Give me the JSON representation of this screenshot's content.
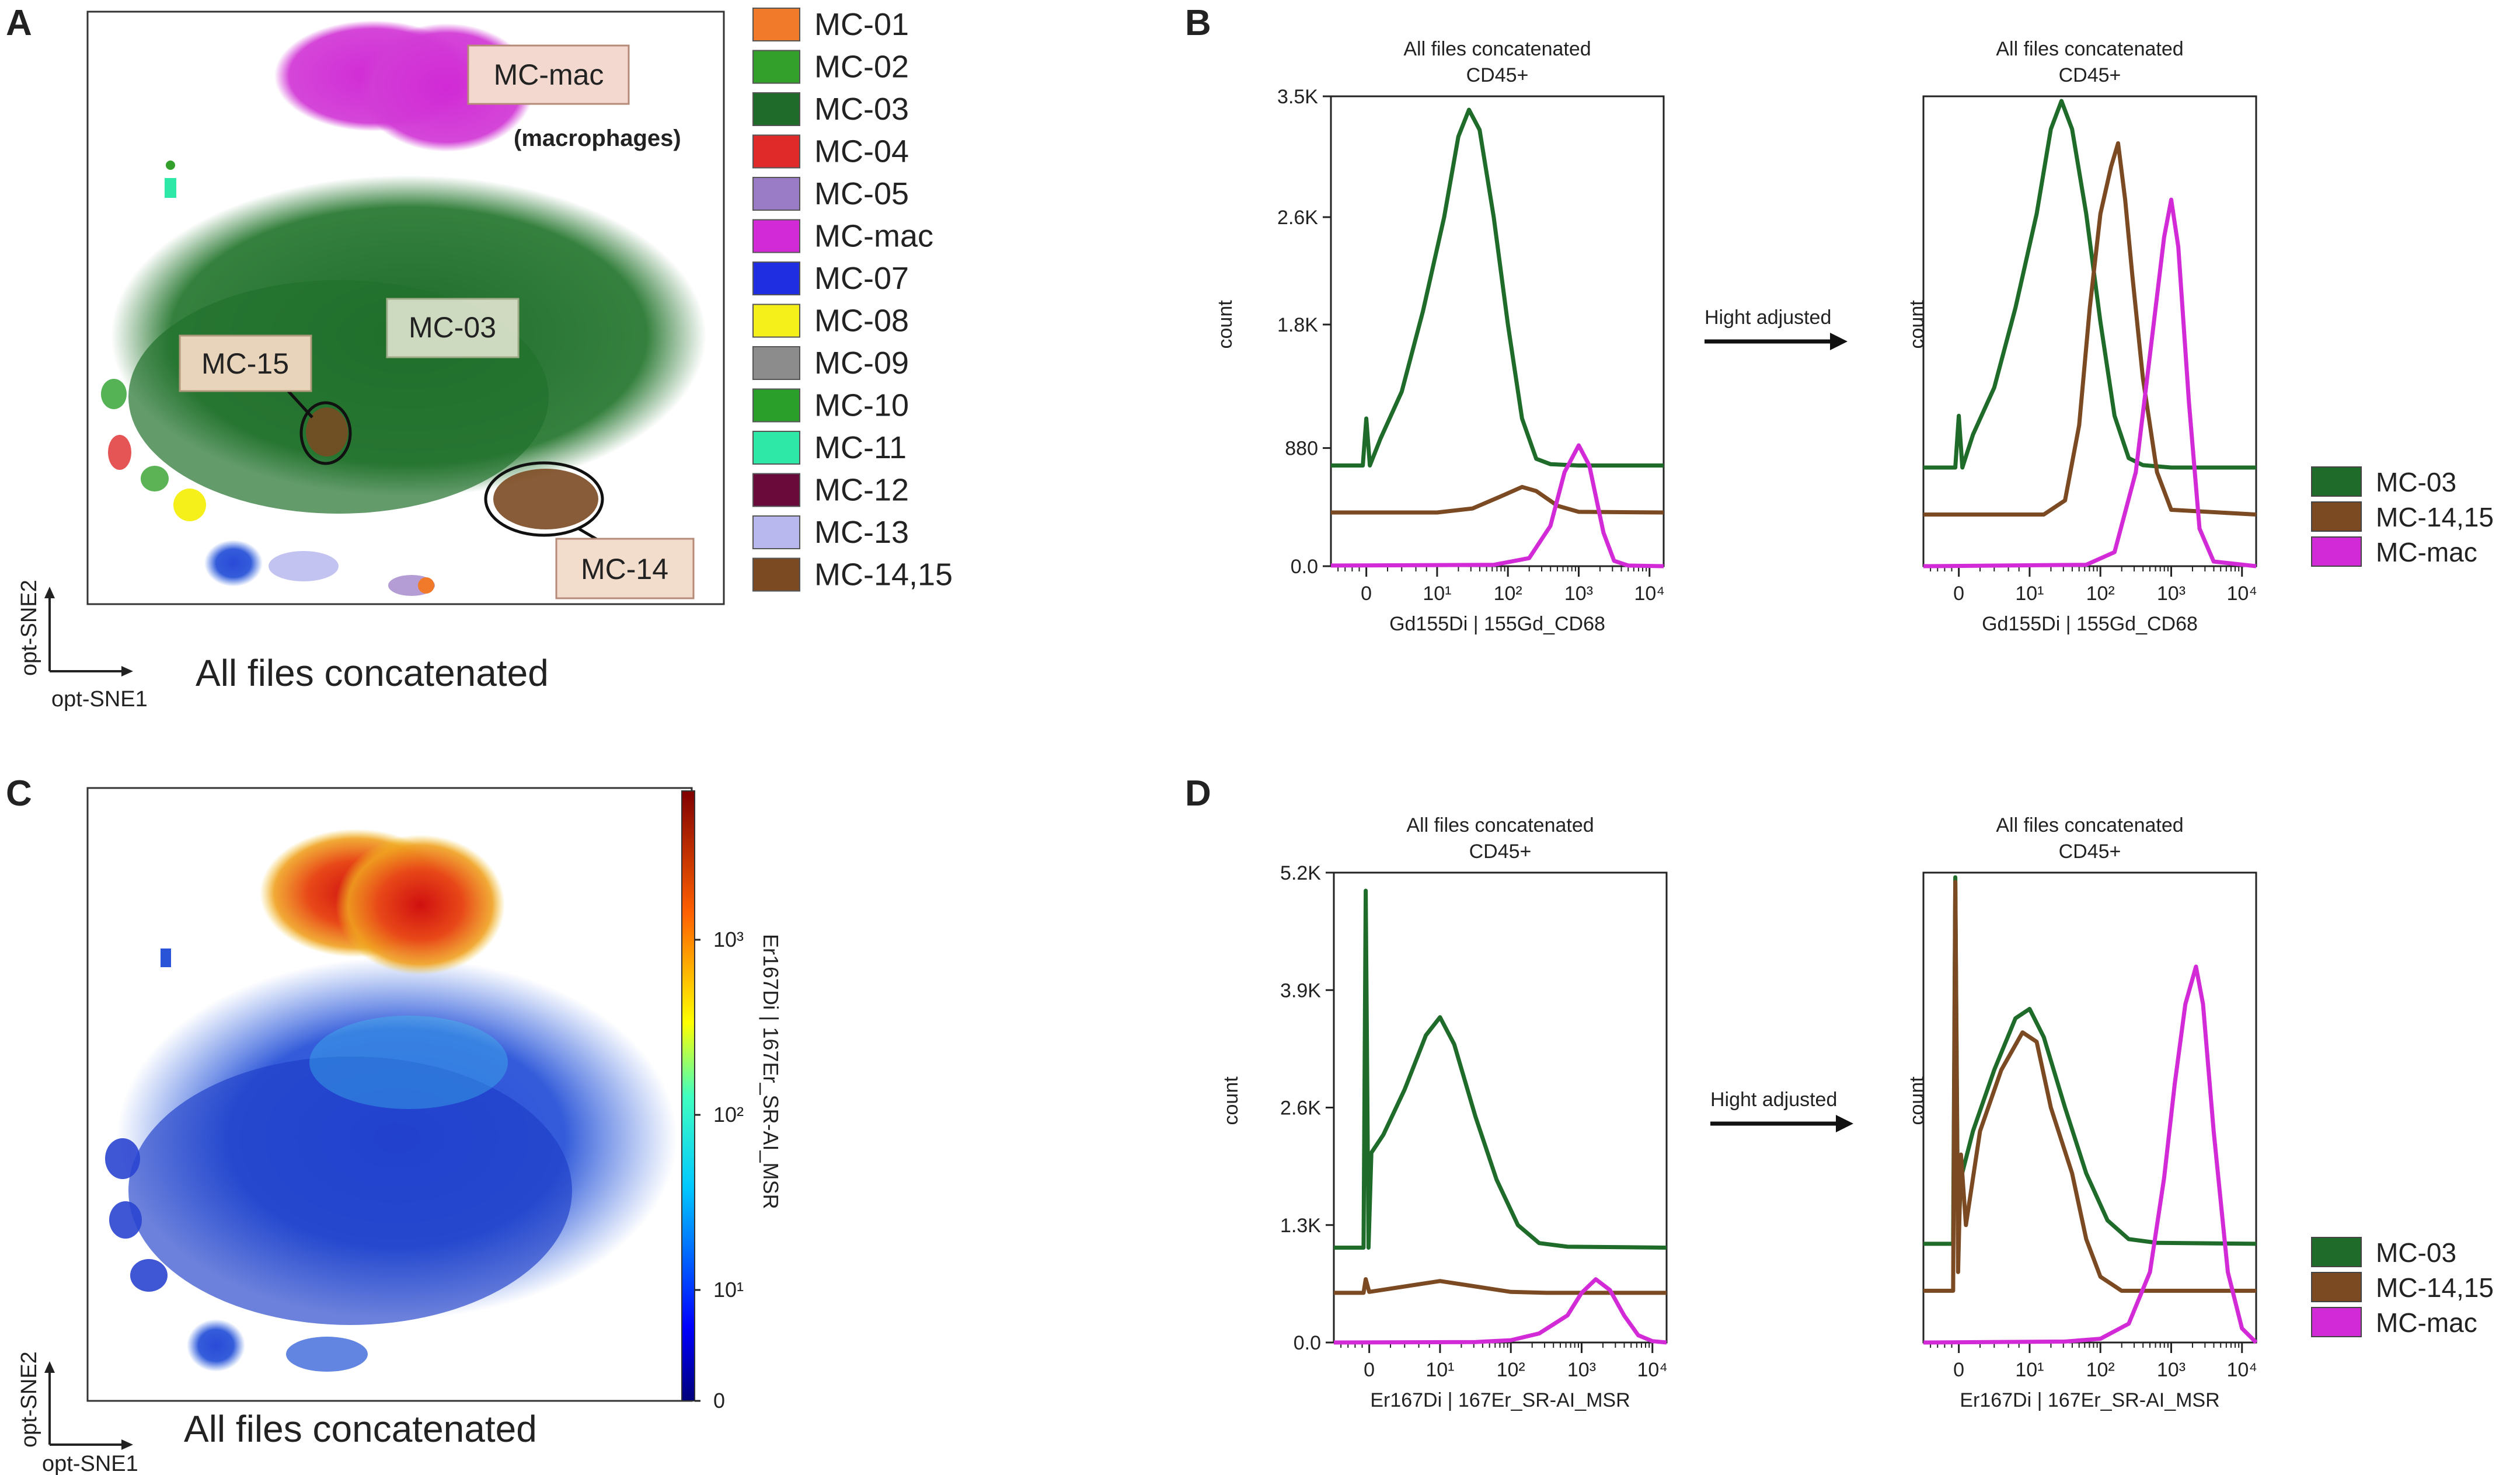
{
  "panel_letters": [
    "A",
    "B",
    "C",
    "D"
  ],
  "colors": {
    "mc03": "#1e6b2a",
    "mc1415": "#7b4a22",
    "mcmac": "#d12ad6"
  },
  "panelA": {
    "footer": "All files concatenated",
    "axis_x": "opt-SNE1",
    "axis_y": "opt-SNE2",
    "callouts": {
      "mac": "MC-mac",
      "mac_note": "(macrophages)",
      "c03": "MC-03",
      "c15": "MC-15",
      "c14": "MC-14"
    },
    "legend": [
      {
        "label": "MC-01",
        "color": "#f07a2a"
      },
      {
        "label": "MC-02",
        "color": "#33a02c"
      },
      {
        "label": "MC-03",
        "color": "#1e6b2a"
      },
      {
        "label": "MC-04",
        "color": "#e02a2a"
      },
      {
        "label": "MC-05",
        "color": "#9a7cc6"
      },
      {
        "label": "MC-mac",
        "color": "#d12ad6"
      },
      {
        "label": "MC-07",
        "color": "#1f2ee0"
      },
      {
        "label": "MC-08",
        "color": "#f5f01a"
      },
      {
        "label": "MC-09",
        "color": "#8c8c8c"
      },
      {
        "label": "MC-10",
        "color": "#2aa02a"
      },
      {
        "label": "MC-11",
        "color": "#2ee8a8"
      },
      {
        "label": "MC-12",
        "color": "#6a0a3a"
      },
      {
        "label": "MC-13",
        "color": "#b8b8ee"
      },
      {
        "label": "MC-14,15",
        "color": "#7b4a22"
      }
    ]
  },
  "panelC": {
    "footer": "All files concatenated",
    "axis_x": "opt-SNE1",
    "axis_y": "opt-SNE2",
    "colorbar_label": "Er167Di | 167Er_SR-AI_MSR",
    "colorbar_ticks": [
      "10³",
      "10²",
      "10¹",
      "0"
    ]
  },
  "transform_label": "Hight adjusted",
  "hist_title_1": "All files concatenated",
  "hist_title_2": "CD45+",
  "hist_ylabel": "count",
  "chart_data": [
    {
      "id": "B-left",
      "type": "line",
      "title": "All files concatenated CD45+",
      "xlabel": "Gd155Di | 155Gd_CD68",
      "ylabel": "count",
      "xscale": "biexponential",
      "xlim": [
        -0.5,
        4.2
      ],
      "ylim": [
        0,
        3500
      ],
      "yticks": [
        "3.5K",
        "2.6K",
        "1.8K",
        "880",
        "0.0"
      ],
      "ytick_values": [
        3500,
        2600,
        1800,
        880,
        0
      ],
      "xticks": [
        "0",
        "10¹",
        "10²",
        "10³",
        "10⁴"
      ],
      "xtick_values": [
        0,
        1,
        2,
        3,
        4
      ],
      "series": [
        {
          "name": "MC-03",
          "color": "#1e6b2a",
          "points": [
            [
              -0.5,
              750
            ],
            [
              -0.2,
              750
            ],
            [
              -0.05,
              750
            ],
            [
              0,
              1100
            ],
            [
              0.05,
              750
            ],
            [
              0.2,
              950
            ],
            [
              0.5,
              1300
            ],
            [
              0.8,
              1900
            ],
            [
              1.1,
              2600
            ],
            [
              1.3,
              3200
            ],
            [
              1.45,
              3400
            ],
            [
              1.6,
              3250
            ],
            [
              1.8,
              2600
            ],
            [
              2.0,
              1800
            ],
            [
              2.2,
              1100
            ],
            [
              2.4,
              800
            ],
            [
              2.6,
              760
            ],
            [
              3.0,
              750
            ],
            [
              4.2,
              750
            ]
          ]
        },
        {
          "name": "MC-14,15",
          "color": "#7b4a22",
          "points": [
            [
              -0.5,
              400
            ],
            [
              1.0,
              400
            ],
            [
              1.5,
              430
            ],
            [
              1.9,
              520
            ],
            [
              2.2,
              590
            ],
            [
              2.4,
              560
            ],
            [
              2.7,
              450
            ],
            [
              3.0,
              405
            ],
            [
              4.2,
              400
            ]
          ]
        },
        {
          "name": "MC-mac",
          "color": "#d12ad6",
          "points": [
            [
              -0.5,
              5
            ],
            [
              1.8,
              10
            ],
            [
              2.3,
              60
            ],
            [
              2.6,
              300
            ],
            [
              2.8,
              700
            ],
            [
              3.0,
              900
            ],
            [
              3.15,
              750
            ],
            [
              3.35,
              250
            ],
            [
              3.5,
              40
            ],
            [
              3.7,
              5
            ],
            [
              4.2,
              0
            ]
          ]
        }
      ]
    },
    {
      "id": "B-right",
      "type": "line",
      "title": "All files concatenated CD45+",
      "xlabel": "Gd155Di | 155Gd_CD68",
      "ylabel": "count",
      "xscale": "biexponential",
      "xlim": [
        -0.5,
        4.2
      ],
      "ylim": [
        0,
        1
      ],
      "xticks": [
        "0",
        "10¹",
        "10²",
        "10³",
        "10⁴"
      ],
      "xtick_values": [
        0,
        1,
        2,
        3,
        4
      ],
      "series": [
        {
          "name": "MC-03",
          "color": "#1e6b2a",
          "points": [
            [
              -0.5,
              0.21
            ],
            [
              -0.05,
              0.21
            ],
            [
              0,
              0.32
            ],
            [
              0.05,
              0.21
            ],
            [
              0.2,
              0.28
            ],
            [
              0.5,
              0.38
            ],
            [
              0.8,
              0.55
            ],
            [
              1.1,
              0.75
            ],
            [
              1.3,
              0.93
            ],
            [
              1.45,
              0.99
            ],
            [
              1.6,
              0.93
            ],
            [
              1.8,
              0.75
            ],
            [
              2.0,
              0.52
            ],
            [
              2.2,
              0.32
            ],
            [
              2.4,
              0.23
            ],
            [
              2.6,
              0.215
            ],
            [
              3.0,
              0.21
            ],
            [
              4.2,
              0.21
            ]
          ]
        },
        {
          "name": "MC-14,15",
          "color": "#7b4a22",
          "points": [
            [
              -0.5,
              0.11
            ],
            [
              1.2,
              0.11
            ],
            [
              1.5,
              0.14
            ],
            [
              1.7,
              0.3
            ],
            [
              1.85,
              0.55
            ],
            [
              2.0,
              0.75
            ],
            [
              2.15,
              0.85
            ],
            [
              2.25,
              0.9
            ],
            [
              2.35,
              0.78
            ],
            [
              2.45,
              0.62
            ],
            [
              2.6,
              0.4
            ],
            [
              2.8,
              0.2
            ],
            [
              3.0,
              0.12
            ],
            [
              4.2,
              0.11
            ]
          ]
        },
        {
          "name": "MC-mac",
          "color": "#d12ad6",
          "points": [
            [
              -0.5,
              0.0
            ],
            [
              1.8,
              0.003
            ],
            [
              2.2,
              0.03
            ],
            [
              2.5,
              0.2
            ],
            [
              2.7,
              0.45
            ],
            [
              2.9,
              0.7
            ],
            [
              3.0,
              0.78
            ],
            [
              3.1,
              0.68
            ],
            [
              3.25,
              0.35
            ],
            [
              3.4,
              0.08
            ],
            [
              3.6,
              0.01
            ],
            [
              4.2,
              0.0
            ]
          ]
        }
      ]
    },
    {
      "id": "D-left",
      "type": "line",
      "title": "All files concatenated CD45+",
      "xlabel": "Er167Di | 167Er_SR-AI_MSR",
      "ylabel": "count",
      "xscale": "biexponential",
      "xlim": [
        -0.5,
        4.2
      ],
      "ylim": [
        0,
        5200
      ],
      "yticks": [
        "5.2K",
        "3.9K",
        "2.6K",
        "1.3K",
        "0.0"
      ],
      "ytick_values": [
        5200,
        3900,
        2600,
        1300,
        0
      ],
      "xticks": [
        "0",
        "10¹",
        "10²",
        "10³",
        "10⁴"
      ],
      "xtick_values": [
        0,
        1,
        2,
        3,
        4
      ],
      "series": [
        {
          "name": "MC-03",
          "color": "#1e6b2a",
          "points": [
            [
              -0.5,
              1050
            ],
            [
              -0.08,
              1050
            ],
            [
              -0.05,
              5000
            ],
            [
              -0.01,
              1050
            ],
            [
              0.03,
              2100
            ],
            [
              0.2,
              2300
            ],
            [
              0.5,
              2800
            ],
            [
              0.8,
              3400
            ],
            [
              1.0,
              3600
            ],
            [
              1.2,
              3300
            ],
            [
              1.5,
              2500
            ],
            [
              1.8,
              1800
            ],
            [
              2.1,
              1300
            ],
            [
              2.4,
              1100
            ],
            [
              2.8,
              1060
            ],
            [
              4.2,
              1050
            ]
          ]
        },
        {
          "name": "MC-14,15",
          "color": "#7b4a22",
          "points": [
            [
              -0.5,
              550
            ],
            [
              -0.08,
              550
            ],
            [
              -0.05,
              700
            ],
            [
              0,
              560
            ],
            [
              0.5,
              620
            ],
            [
              1.0,
              680
            ],
            [
              1.5,
              620
            ],
            [
              2.0,
              560
            ],
            [
              2.5,
              550
            ],
            [
              4.2,
              550
            ]
          ]
        },
        {
          "name": "MC-mac",
          "color": "#d12ad6",
          "points": [
            [
              -0.5,
              0
            ],
            [
              1.5,
              5
            ],
            [
              2.0,
              25
            ],
            [
              2.4,
              100
            ],
            [
              2.8,
              300
            ],
            [
              3.0,
              550
            ],
            [
              3.2,
              700
            ],
            [
              3.4,
              580
            ],
            [
              3.6,
              300
            ],
            [
              3.8,
              80
            ],
            [
              4.0,
              15
            ],
            [
              4.2,
              0
            ]
          ]
        }
      ]
    },
    {
      "id": "D-right",
      "type": "line",
      "title": "All files concatenated CD45+",
      "xlabel": "Er167Di | 167Er_SR-AI_MSR",
      "ylabel": "count",
      "xscale": "biexponential",
      "xlim": [
        -0.5,
        4.2
      ],
      "ylim": [
        0,
        1
      ],
      "xticks": [
        "0",
        "10¹",
        "10²",
        "10³",
        "10⁴"
      ],
      "xtick_values": [
        0,
        1,
        2,
        3,
        4
      ],
      "series": [
        {
          "name": "MC-03",
          "color": "#1e6b2a",
          "points": [
            [
              -0.5,
              0.21
            ],
            [
              -0.08,
              0.21
            ],
            [
              -0.05,
              0.99
            ],
            [
              -0.01,
              0.21
            ],
            [
              0.03,
              0.35
            ],
            [
              0.2,
              0.45
            ],
            [
              0.5,
              0.58
            ],
            [
              0.8,
              0.69
            ],
            [
              1.0,
              0.71
            ],
            [
              1.2,
              0.65
            ],
            [
              1.5,
              0.5
            ],
            [
              1.8,
              0.36
            ],
            [
              2.1,
              0.26
            ],
            [
              2.4,
              0.22
            ],
            [
              2.8,
              0.212
            ],
            [
              4.2,
              0.21
            ]
          ]
        },
        {
          "name": "MC-14,15",
          "color": "#7b4a22",
          "points": [
            [
              -0.5,
              0.11
            ],
            [
              -0.08,
              0.11
            ],
            [
              -0.05,
              0.98
            ],
            [
              -0.01,
              0.15
            ],
            [
              0.03,
              0.4
            ],
            [
              0.1,
              0.25
            ],
            [
              0.3,
              0.45
            ],
            [
              0.6,
              0.58
            ],
            [
              0.9,
              0.66
            ],
            [
              1.1,
              0.64
            ],
            [
              1.3,
              0.5
            ],
            [
              1.6,
              0.36
            ],
            [
              1.8,
              0.22
            ],
            [
              2.0,
              0.14
            ],
            [
              2.3,
              0.11
            ],
            [
              4.2,
              0.11
            ]
          ]
        },
        {
          "name": "MC-mac",
          "color": "#d12ad6",
          "points": [
            [
              -0.5,
              0.0
            ],
            [
              1.5,
              0.002
            ],
            [
              2.0,
              0.008
            ],
            [
              2.4,
              0.04
            ],
            [
              2.7,
              0.15
            ],
            [
              2.9,
              0.35
            ],
            [
              3.05,
              0.55
            ],
            [
              3.2,
              0.72
            ],
            [
              3.35,
              0.8
            ],
            [
              3.45,
              0.72
            ],
            [
              3.6,
              0.45
            ],
            [
              3.8,
              0.15
            ],
            [
              4.0,
              0.03
            ],
            [
              4.2,
              0.0
            ]
          ]
        }
      ]
    }
  ],
  "hist_legend": [
    {
      "label": "MC-03",
      "color": "#1e6b2a"
    },
    {
      "label": "MC-14,15",
      "color": "#7b4a22"
    },
    {
      "label": "MC-mac",
      "color": "#d12ad6"
    }
  ]
}
